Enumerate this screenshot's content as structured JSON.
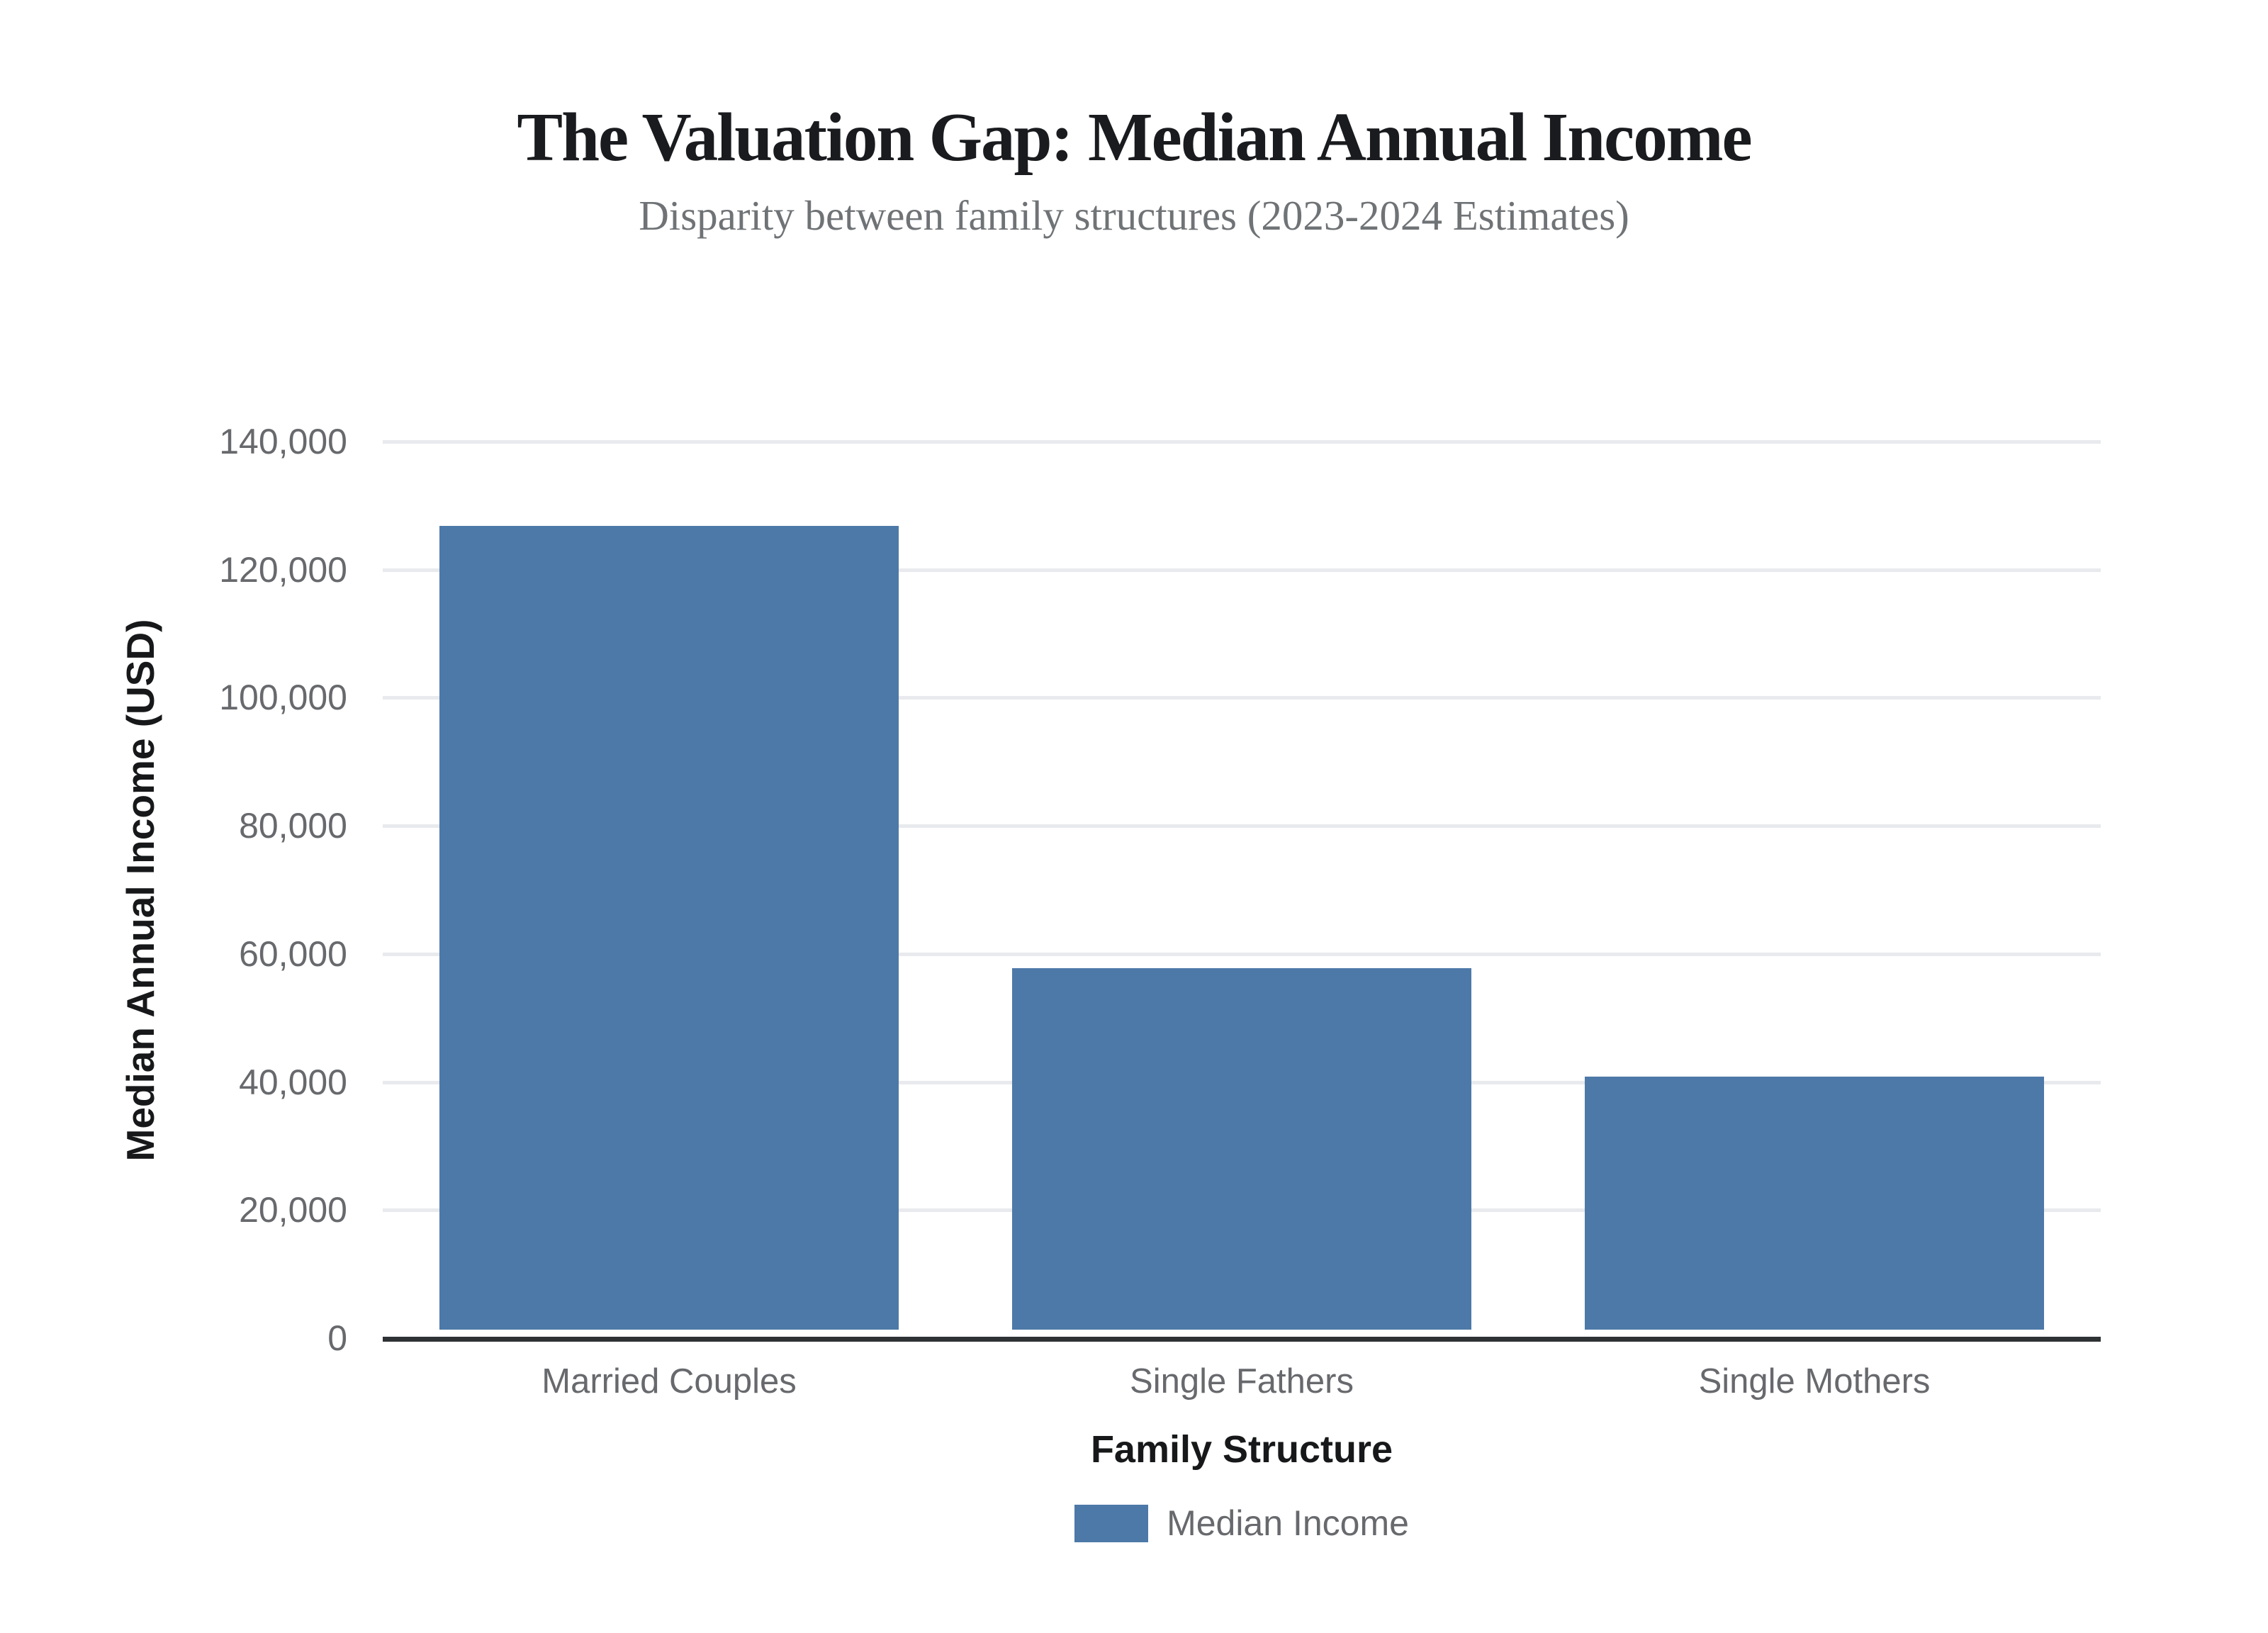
{
  "chart_data": {
    "type": "bar",
    "title": "The Valuation Gap: Median Annual Income",
    "subtitle": "Disparity between family structures (2023-2024 Estimates)",
    "xlabel": "Family Structure",
    "ylabel": "Median Annual Income (USD)",
    "categories": [
      "Married Couples",
      "Single Fathers",
      "Single Mothers"
    ],
    "values": [
      125500,
      56400,
      39500
    ],
    "series_name": "Median Income",
    "legend": [
      "Median Income"
    ],
    "legend_position": "bottom",
    "ylim": [
      0,
      140000
    ],
    "ytick_step": 20000,
    "yticks": [
      "0",
      "20,000",
      "40,000",
      "60,000",
      "80,000",
      "100,000",
      "120,000",
      "140,000"
    ],
    "grid": "horizontal",
    "bar_color": "#4d79a8",
    "axis_line_color": "#2f3235",
    "gridline_color": "#e8eaed",
    "title_color": "#191b1e",
    "subtitle_color": "#6f7376",
    "tick_label_color": "#67696d"
  }
}
